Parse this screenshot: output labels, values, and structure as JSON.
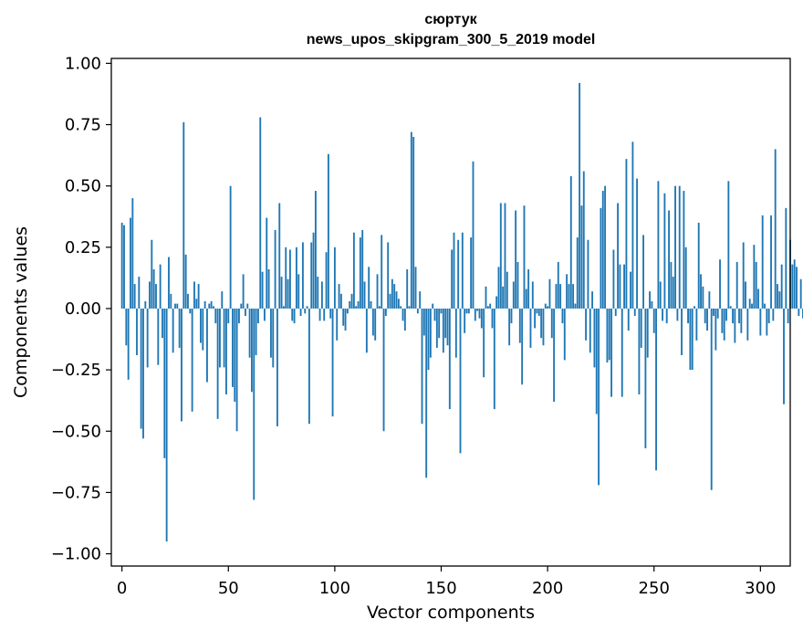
{
  "chart_data": {
    "type": "bar",
    "title": "сюртук",
    "subtitle": "news_upos_skipgram_300_5_2019 model",
    "xlabel": "Vector components",
    "ylabel": "Components values",
    "xlim": [
      -5,
      314
    ],
    "ylim": [
      -1.05,
      1.02
    ],
    "xticks": [
      0,
      50,
      100,
      150,
      200,
      250,
      300
    ],
    "xtick_labels": [
      "0",
      "50",
      "100",
      "150",
      "200",
      "250",
      "300"
    ],
    "yticks": [
      1.0,
      0.75,
      0.5,
      0.25,
      0.0,
      -0.25,
      -0.5,
      -0.75,
      -1.0
    ],
    "ytick_labels": [
      "1.00",
      "0.75",
      "0.50",
      "0.25",
      "0.00",
      "−0.25",
      "−0.50",
      "−0.75",
      "−1.00"
    ],
    "bar_color": "#1f77b4",
    "grid": false,
    "legend": "none",
    "values": [
      0.35,
      0.34,
      -0.15,
      -0.29,
      0.37,
      0.45,
      0.1,
      -0.19,
      0.13,
      -0.49,
      -0.53,
      0.03,
      -0.24,
      0.11,
      0.28,
      0.16,
      0.1,
      -0.23,
      0.18,
      -0.12,
      -0.61,
      -0.95,
      0.21,
      0.06,
      -0.18,
      0.02,
      0.02,
      -0.16,
      -0.46,
      0.76,
      0.22,
      0.06,
      -0.02,
      -0.42,
      0.11,
      0.04,
      0.1,
      -0.14,
      -0.17,
      0.03,
      -0.3,
      0.02,
      0.03,
      0.01,
      -0.06,
      -0.45,
      -0.24,
      0.07,
      -0.24,
      -0.35,
      -0.06,
      0.5,
      -0.32,
      -0.38,
      -0.5,
      -0.06,
      0.02,
      0.14,
      -0.03,
      0.02,
      -0.2,
      -0.34,
      -0.78,
      -0.19,
      -0.06,
      0.78,
      0.15,
      -0.05,
      0.37,
      0.16,
      -0.2,
      -0.24,
      0.32,
      -0.48,
      0.43,
      0.13,
      0.01,
      0.25,
      0.12,
      0.24,
      -0.05,
      -0.06,
      0.25,
      0.14,
      -0.03,
      0.27,
      -0.02,
      0.01,
      -0.47,
      0.27,
      0.31,
      0.48,
      0.13,
      -0.05,
      0.11,
      -0.05,
      0.23,
      0.63,
      -0.04,
      -0.44,
      0.25,
      -0.13,
      0.1,
      0.06,
      -0.07,
      -0.09,
      -0.02,
      0.03,
      0.06,
      0.31,
      0.01,
      0.03,
      0.29,
      0.32,
      0.11,
      -0.18,
      0.17,
      0.03,
      -0.11,
      -0.13,
      0.14,
      0.01,
      0.3,
      -0.5,
      -0.03,
      0.27,
      0.06,
      0.12,
      0.1,
      0.07,
      0.04,
      0.01,
      -0.05,
      -0.09,
      0.16,
      0.01,
      0.72,
      0.7,
      0.17,
      -0.02,
      0.07,
      -0.47,
      -0.11,
      -0.69,
      -0.25,
      -0.2,
      0.02,
      -0.05,
      -0.16,
      -0.12,
      -0.02,
      -0.18,
      -0.12,
      -0.15,
      -0.41,
      0.24,
      0.31,
      -0.2,
      0.28,
      -0.59,
      0.31,
      -0.1,
      -0.02,
      -0.02,
      0.29,
      0.6,
      -0.05,
      -0.01,
      -0.04,
      -0.08,
      -0.28,
      0.09,
      0.01,
      0.02,
      -0.08,
      -0.41,
      0.05,
      0.17,
      0.43,
      0.09,
      0.43,
      0.15,
      -0.15,
      -0.06,
      0.11,
      0.4,
      0.19,
      -0.14,
      -0.31,
      0.42,
      0.08,
      0.16,
      -0.16,
      0.11,
      -0.08,
      -0.02,
      -0.03,
      -0.12,
      -0.15,
      0.02,
      0.01,
      0.12,
      -0.12,
      -0.38,
      0.1,
      0.19,
      0.1,
      -0.06,
      -0.21,
      0.14,
      0.1,
      0.54,
      0.1,
      0.02,
      0.29,
      0.92,
      0.42,
      0.56,
      -0.13,
      0.28,
      -0.18,
      0.07,
      -0.24,
      -0.43,
      -0.72,
      0.41,
      0.48,
      0.5,
      -0.22,
      -0.21,
      -0.36,
      0.24,
      -0.03,
      0.43,
      0.18,
      -0.36,
      0.18,
      0.61,
      -0.09,
      0.15,
      0.68,
      -0.03,
      0.53,
      -0.35,
      -0.16,
      0.3,
      -0.57,
      -0.2,
      0.07,
      0.03,
      -0.1,
      -0.66,
      0.52,
      0.11,
      -0.05,
      0.47,
      -0.06,
      0.4,
      0.19,
      0.13,
      0.5,
      -0.05,
      0.5,
      -0.19,
      0.48,
      0.25,
      -0.06,
      -0.25,
      -0.25,
      0.01,
      -0.13,
      0.35,
      0.14,
      0.09,
      -0.06,
      -0.09,
      0.07,
      -0.74,
      -0.03,
      -0.17,
      -0.04,
      0.2,
      -0.1,
      -0.13,
      -0.05,
      0.52,
      0.01,
      -0.06,
      -0.14,
      0.19,
      -0.06,
      -0.1,
      0.27,
      0.11,
      -0.13,
      0.04,
      0.02,
      0.26,
      0.19,
      0.08,
      -0.11,
      0.38,
      0.02,
      -0.11,
      -0.06,
      0.38,
      -0.05,
      0.65,
      0.1,
      0.07,
      0.18,
      -0.39,
      0.41,
      -0.06,
      0.28,
      0.18,
      0.2,
      0.17,
      -0.03,
      0.12,
      -0.04
    ]
  }
}
